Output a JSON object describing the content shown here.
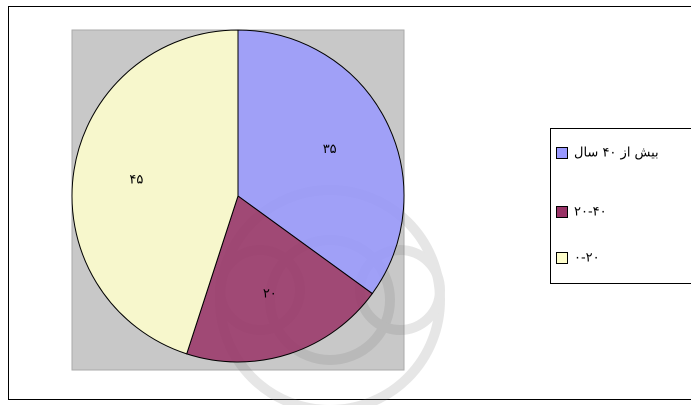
{
  "chart_data": {
    "type": "pie",
    "categories": [
      "بیش از ۴۰ سال",
      "۲۰-۴۰",
      "۰-۲۰"
    ],
    "values": [
      35,
      20,
      45
    ],
    "value_labels": [
      "۳۵",
      "۲۰",
      "۴۵"
    ],
    "colors": [
      "#9999ff",
      "#993366",
      "#ffffcc"
    ],
    "legend": "right"
  }
}
